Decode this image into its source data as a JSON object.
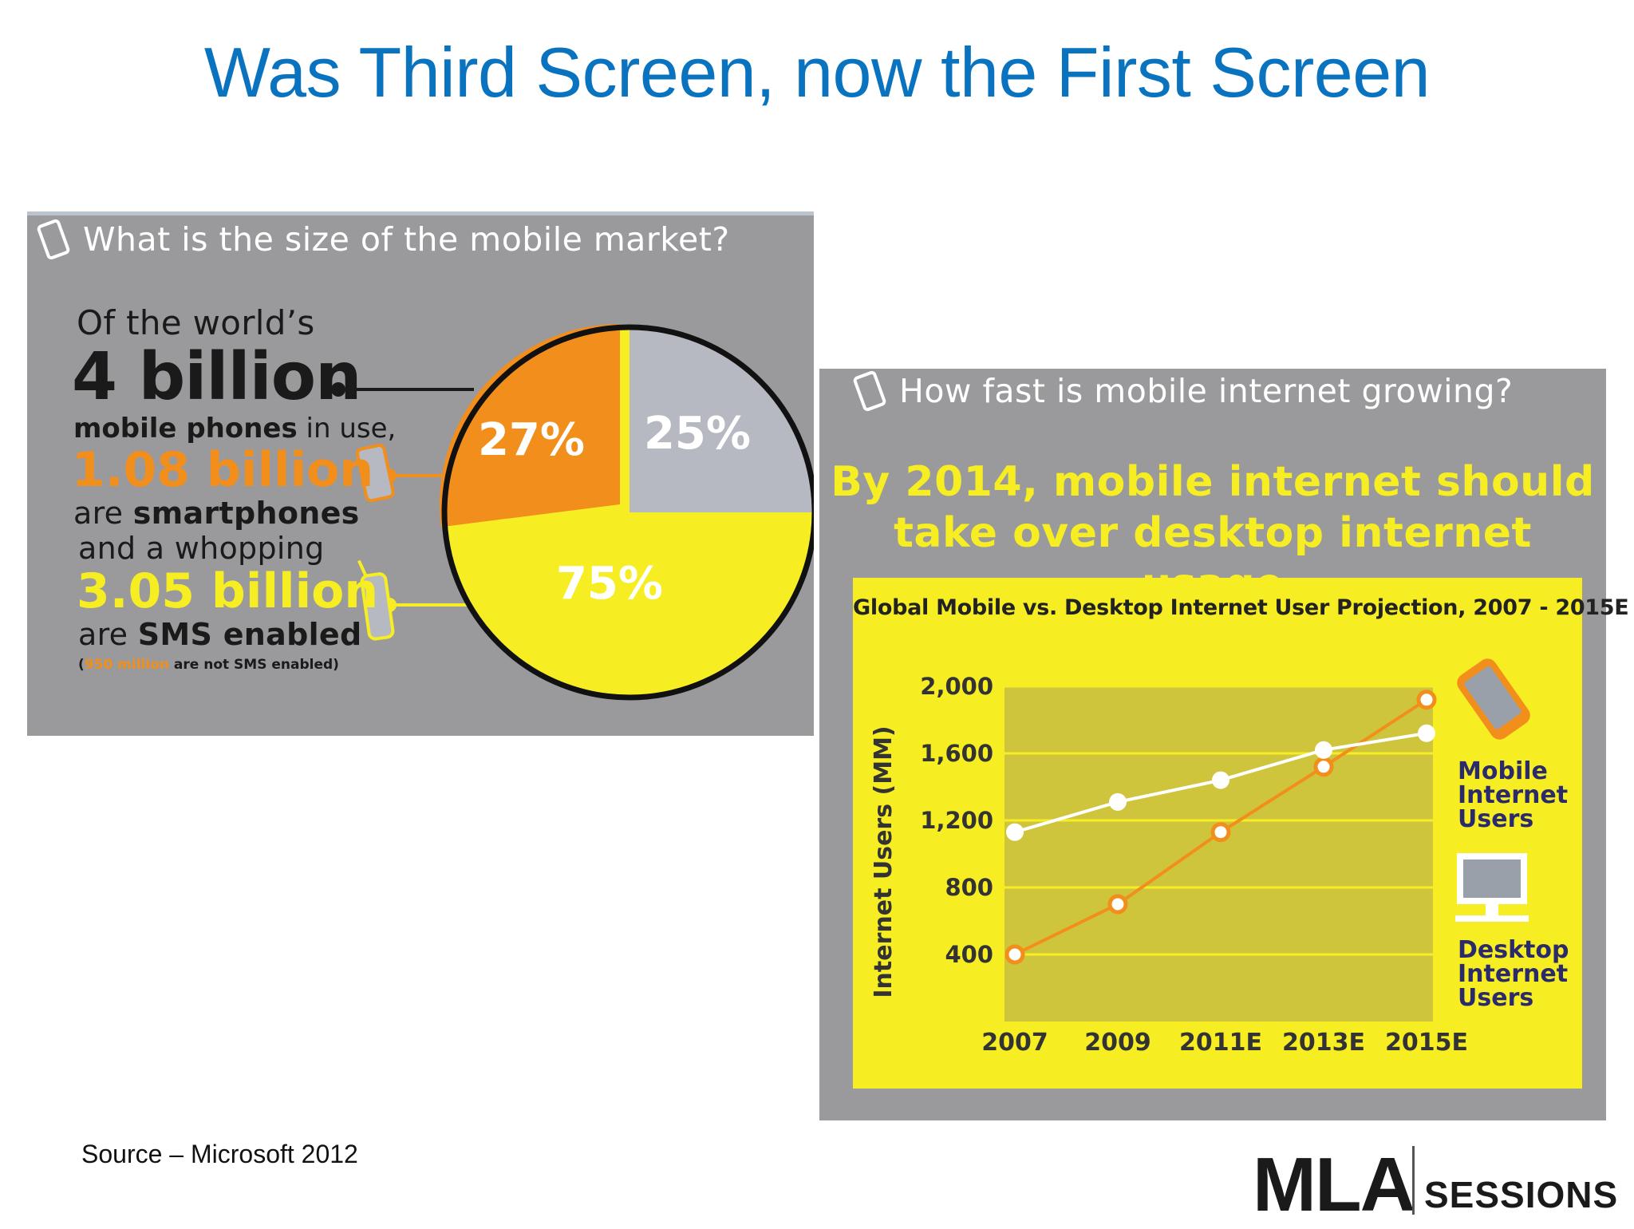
{
  "slide": {
    "title": "Was Third Screen, now the First Screen",
    "source": "Source – Microsoft 2012",
    "logo": {
      "mark": "MLA",
      "word": "SESSIONS"
    }
  },
  "left_infographic": {
    "question": "What is the size of the mobile market?",
    "line1": "Of the world’s",
    "line2": "4 billion",
    "line3a": "mobile phones",
    "line3b": " in use,",
    "line4": "1.08 billion",
    "line5a": "are ",
    "line5b": "smartphones",
    "line6": "and a whopping",
    "line7": "3.05 billion",
    "line8a": "are ",
    "line8b": "SMS enabled",
    "footnote_a": "(",
    "footnote_b": "950 million",
    "footnote_c": " are not SMS enabled)",
    "colors": {
      "orange": "#f28e1b",
      "yellow": "#f6ee23",
      "grey": "#b7b9c2",
      "panel": "#9a9a9c"
    }
  },
  "right_infographic": {
    "question": "How fast is mobile internet growing?",
    "headline_1": "By 2014, mobile internet should",
    "headline_2": "take over desktop internet usage",
    "legend_mobile": [
      "Mobile",
      "Internet",
      "Users"
    ],
    "legend_desktop": [
      "Desktop",
      "Internet",
      "Users"
    ]
  },
  "chart_data": [
    {
      "type": "pie",
      "slices": [
        {
          "label": "27%",
          "value": 27,
          "color": "#f28e1b"
        },
        {
          "label": "25%",
          "value": 25,
          "color": "#b7b9c2"
        },
        {
          "label": "75%",
          "value": 75,
          "color": "#f6ee23"
        }
      ]
    },
    {
      "type": "line",
      "title": "Global Mobile vs. Desktop Internet User Projection, 2007 - 2015E",
      "ylabel": "Internet Users (MM)",
      "x": [
        "2007",
        "2009",
        "2011E",
        "2013E",
        "2015E"
      ],
      "y_ticks": [
        "400",
        "800",
        "1,200",
        "1,600",
        "2,000"
      ],
      "ylim": [
        0,
        2000
      ],
      "series": [
        {
          "name": "Mobile Internet Users",
          "color": "#f28e1b",
          "values": [
            400,
            700,
            1130,
            1520,
            1920
          ]
        },
        {
          "name": "Desktop Internet Users",
          "color": "#ffffff",
          "values": [
            1130,
            1310,
            1440,
            1620,
            1720
          ]
        }
      ]
    }
  ]
}
